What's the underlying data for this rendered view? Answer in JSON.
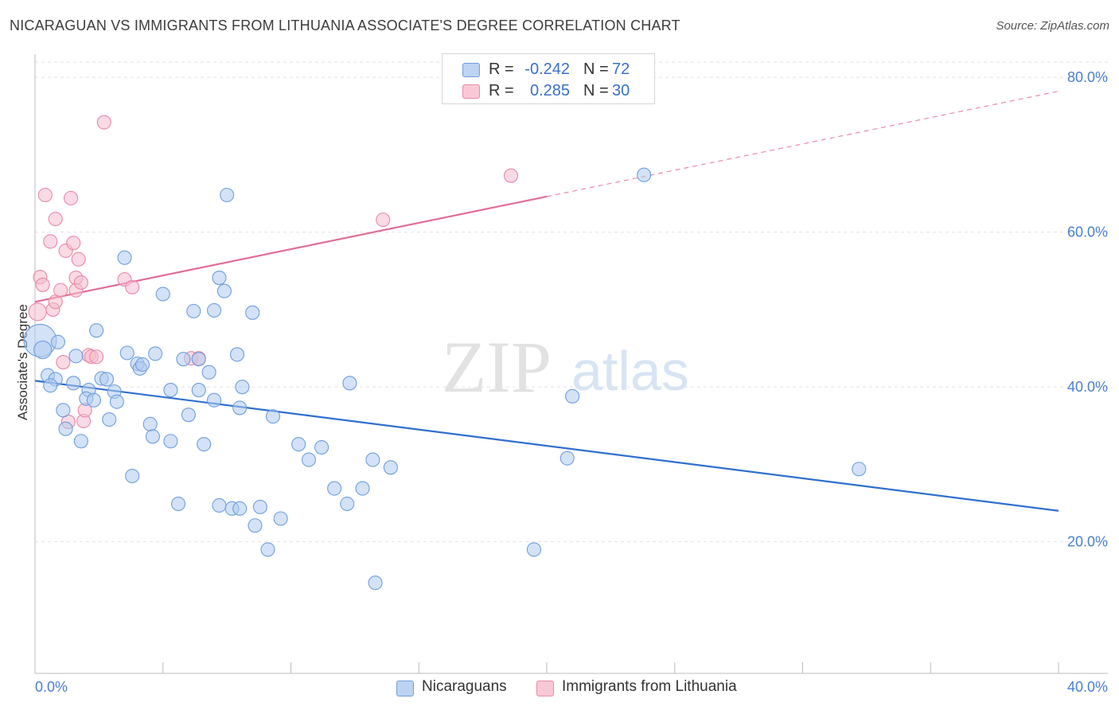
{
  "title": "NICARAGUAN VS IMMIGRANTS FROM LITHUANIA ASSOCIATE'S DEGREE CORRELATION CHART",
  "source": "Source: ZipAtlas.com",
  "watermark": {
    "zip": "ZIP",
    "atlas": "atlas"
  },
  "colors": {
    "blue_fill": "#aecbf0",
    "blue_stroke": "#6f9fdc",
    "blue_line": "#2f6fcf",
    "pink_fill": "#f6bccd",
    "pink_stroke": "#e88aa6",
    "pink_line": "#e26e96",
    "tick_text": "#4a7fd0",
    "grid": "#e3e3e3"
  },
  "legend": {
    "rows": [
      {
        "r_label": "R =",
        "r_value": "-0.242",
        "n_label": "N =",
        "n_value": "72"
      },
      {
        "r_label": "R =",
        "r_value": "0.285",
        "n_label": "N =",
        "n_value": "30"
      }
    ]
  },
  "bottom_legend": {
    "series1": "Nicaraguans",
    "series2": "Immigrants from Lithuania"
  },
  "chart_data": {
    "type": "scatter",
    "title": "NICARAGUAN VS IMMIGRANTS FROM LITHUANIA ASSOCIATE'S DEGREE CORRELATION CHART",
    "xlabel": "",
    "ylabel": "Associate's Degree",
    "xlim": [
      0,
      40
    ],
    "ylim": [
      3,
      83
    ],
    "x_ticks": [
      "0.0%",
      "40.0%"
    ],
    "y_ticks": [
      {
        "value": 20,
        "label": "20.0%"
      },
      {
        "value": 40,
        "label": "40.0%"
      },
      {
        "value": 60,
        "label": "60.0%"
      },
      {
        "value": 80,
        "label": "80.0%"
      }
    ],
    "grid": "horizontal dashed",
    "legend_position": "top-center",
    "series": [
      {
        "name": "Nicaraguans",
        "r": -0.242,
        "n": 72,
        "trend": {
          "x0": 0,
          "y0": 40.8,
          "x1": 40,
          "y1": 24.0
        },
        "points": [
          [
            0.2,
            46.0,
            2.4
          ],
          [
            0.3,
            44.8,
            1.3
          ],
          [
            0.5,
            41.5,
            1.0
          ],
          [
            0.8,
            41.0,
            1.0
          ],
          [
            0.6,
            40.2,
            1.0
          ],
          [
            0.9,
            45.8,
            1.0
          ],
          [
            1.6,
            44.0,
            1.0
          ],
          [
            1.5,
            40.5,
            1.0
          ],
          [
            1.1,
            37.0,
            1.0
          ],
          [
            1.2,
            34.6,
            1.0
          ],
          [
            1.8,
            33.0,
            1.0
          ],
          [
            2.4,
            47.3,
            1.0
          ],
          [
            2.6,
            41.1,
            1.0
          ],
          [
            2.8,
            41.0,
            1.0
          ],
          [
            2.1,
            39.6,
            1.0
          ],
          [
            2.0,
            38.5,
            1.0
          ],
          [
            2.3,
            38.3,
            1.0
          ],
          [
            3.1,
            39.4,
            1.0
          ],
          [
            3.2,
            38.1,
            1.0
          ],
          [
            2.9,
            35.8,
            1.0
          ],
          [
            3.5,
            56.7,
            1.0
          ],
          [
            3.6,
            44.4,
            1.0
          ],
          [
            4.0,
            43.0,
            1.0
          ],
          [
            4.1,
            42.4,
            1.0
          ],
          [
            4.2,
            42.9,
            1.0
          ],
          [
            4.7,
            44.3,
            1.0
          ],
          [
            5.0,
            52.0,
            1.0
          ],
          [
            5.3,
            39.6,
            1.0
          ],
          [
            4.5,
            35.2,
            1.0
          ],
          [
            4.6,
            33.6,
            1.0
          ],
          [
            5.3,
            33.0,
            1.0
          ],
          [
            3.8,
            28.5,
            1.0
          ],
          [
            5.6,
            24.9,
            1.0
          ],
          [
            5.8,
            43.6,
            1.0
          ],
          [
            6.0,
            36.4,
            1.0
          ],
          [
            6.2,
            49.8,
            1.0
          ],
          [
            6.4,
            43.6,
            1.0
          ],
          [
            6.4,
            39.6,
            1.0
          ],
          [
            6.6,
            32.6,
            1.0
          ],
          [
            6.8,
            41.9,
            1.0
          ],
          [
            7.0,
            38.3,
            1.0
          ],
          [
            7.2,
            24.7,
            1.0
          ],
          [
            7.7,
            24.3,
            1.0
          ],
          [
            7.5,
            64.8,
            1.0
          ],
          [
            7.0,
            49.9,
            1.0
          ],
          [
            7.2,
            54.1,
            1.0
          ],
          [
            7.4,
            52.4,
            1.0
          ],
          [
            8.0,
            24.3,
            1.0
          ],
          [
            8.0,
            37.3,
            1.0
          ],
          [
            8.1,
            40.0,
            1.0
          ],
          [
            7.9,
            44.2,
            1.0
          ],
          [
            8.5,
            49.6,
            1.0
          ],
          [
            8.6,
            22.1,
            1.0
          ],
          [
            8.8,
            24.5,
            1.0
          ],
          [
            9.1,
            19.0,
            1.0
          ],
          [
            9.3,
            36.2,
            1.0
          ],
          [
            9.6,
            23.0,
            1.0
          ],
          [
            10.3,
            32.6,
            1.0
          ],
          [
            10.7,
            30.6,
            1.0
          ],
          [
            11.2,
            32.2,
            1.0
          ],
          [
            11.7,
            26.9,
            1.0
          ],
          [
            12.3,
            40.5,
            1.0
          ],
          [
            12.2,
            24.9,
            1.0
          ],
          [
            12.8,
            26.9,
            1.0
          ],
          [
            13.2,
            30.6,
            1.0
          ],
          [
            13.3,
            14.7,
            1.0
          ],
          [
            13.9,
            29.6,
            1.0
          ],
          [
            19.5,
            19.0,
            1.0
          ],
          [
            20.8,
            30.8,
            1.0
          ],
          [
            21.0,
            38.8,
            1.0
          ],
          [
            23.8,
            67.4,
            1.0
          ],
          [
            32.2,
            29.4,
            1.0
          ]
        ]
      },
      {
        "name": "Immigrants from Lithuania",
        "r": 0.285,
        "n": 30,
        "trend": {
          "x0": 0,
          "y0": 51.0,
          "x1": 20.0,
          "y1": 64.6,
          "dashed_to": {
            "x": 40,
            "y": 78.2
          }
        },
        "points": [
          [
            0.1,
            49.7,
            1.3
          ],
          [
            0.2,
            54.2,
            1.0
          ],
          [
            0.3,
            53.2,
            1.0
          ],
          [
            0.4,
            64.8,
            1.0
          ],
          [
            0.6,
            58.8,
            1.0
          ],
          [
            0.8,
            61.7,
            1.0
          ],
          [
            0.7,
            50.0,
            1.0
          ],
          [
            0.8,
            51.0,
            1.0
          ],
          [
            1.0,
            52.5,
            1.0
          ],
          [
            1.1,
            43.2,
            1.0
          ],
          [
            1.2,
            57.6,
            1.0
          ],
          [
            1.3,
            35.5,
            1.0
          ],
          [
            1.4,
            64.4,
            1.0
          ],
          [
            1.5,
            58.6,
            1.0
          ],
          [
            1.6,
            54.1,
            1.0
          ],
          [
            1.7,
            56.5,
            1.0
          ],
          [
            1.6,
            52.5,
            1.0
          ],
          [
            1.8,
            53.5,
            1.0
          ],
          [
            1.9,
            35.6,
            1.0
          ],
          [
            1.95,
            37.0,
            1.0
          ],
          [
            2.1,
            44.1,
            1.0
          ],
          [
            2.2,
            43.9,
            1.0
          ],
          [
            2.4,
            43.9,
            1.0
          ],
          [
            2.7,
            74.2,
            1.0
          ],
          [
            3.5,
            53.9,
            1.0
          ],
          [
            3.8,
            52.9,
            1.0
          ],
          [
            6.1,
            43.7,
            1.0
          ],
          [
            6.4,
            43.7,
            1.0
          ],
          [
            13.6,
            61.6,
            1.0
          ],
          [
            18.6,
            67.3,
            1.0
          ]
        ]
      }
    ]
  }
}
